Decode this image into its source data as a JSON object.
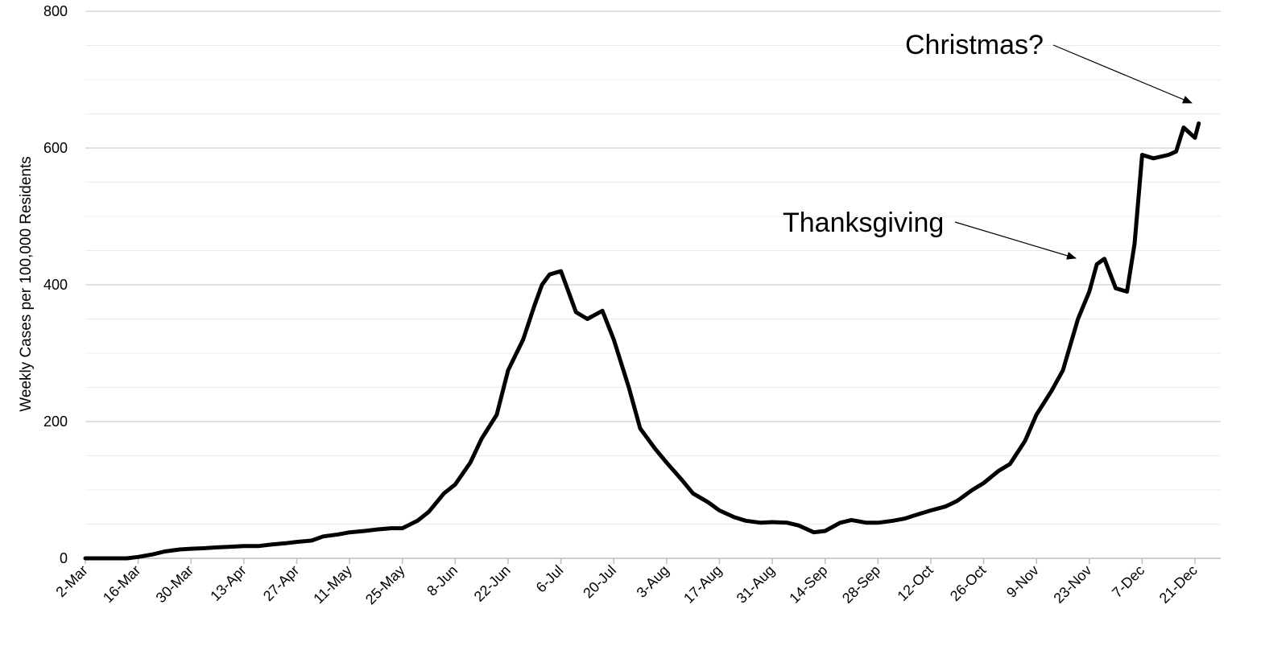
{
  "chart_data": {
    "type": "line",
    "title": "",
    "xlabel": "",
    "ylabel": "Weekly Cases per 100,000 Residents",
    "ylim": [
      0,
      800
    ],
    "yticks": [
      0,
      200,
      400,
      600,
      800
    ],
    "minor_gridlines_every": 50,
    "grid": true,
    "legend": "none",
    "x_tick_labels": [
      "2-Mar",
      "16-Mar",
      "30-Mar",
      "13-Apr",
      "27-Apr",
      "11-May",
      "25-May",
      "8-Jun",
      "22-Jun",
      "6-Jul",
      "20-Jul",
      "3-Aug",
      "17-Aug",
      "31-Aug",
      "14-Sep",
      "28-Sep",
      "12-Oct",
      "26-Oct",
      "9-Nov",
      "23-Nov",
      "7-Dec",
      "21-Dec"
    ],
    "line_color": "#000000",
    "series": [
      {
        "x": [
          "2-Mar",
          "6-Mar",
          "9-Mar",
          "13-Mar",
          "16-Mar",
          "20-Mar",
          "23-Mar",
          "27-Mar",
          "30-Mar",
          "3-Apr",
          "6-Apr",
          "10-Apr",
          "13-Apr",
          "17-Apr",
          "20-Apr",
          "24-Apr",
          "27-Apr",
          "1-May",
          "4-May",
          "8-May",
          "11-May",
          "15-May",
          "18-May",
          "22-May",
          "25-May",
          "29-May",
          "1-Jun",
          "5-Jun",
          "8-Jun",
          "12-Jun",
          "15-Jun",
          "19-Jun",
          "22-Jun",
          "26-Jun",
          "29-Jun",
          "1-Jul",
          "3-Jul",
          "6-Jul",
          "10-Jul",
          "13-Jul",
          "17-Jul",
          "20-Jul",
          "24-Jul",
          "27-Jul",
          "31-Jul",
          "3-Aug",
          "7-Aug",
          "10-Aug",
          "14-Aug",
          "17-Aug",
          "21-Aug",
          "24-Aug",
          "28-Aug",
          "31-Aug",
          "4-Sep",
          "7-Sep",
          "11-Sep",
          "14-Sep",
          "18-Sep",
          "21-Sep",
          "25-Sep",
          "28-Sep",
          "2-Oct",
          "5-Oct",
          "9-Oct",
          "12-Oct",
          "16-Oct",
          "19-Oct",
          "23-Oct",
          "26-Oct",
          "30-Oct",
          "2-Nov",
          "6-Nov",
          "9-Nov",
          "13-Nov",
          "16-Nov",
          "20-Nov",
          "23-Nov",
          "25-Nov",
          "27-Nov",
          "30-Nov",
          "3-Dec",
          "5-Dec",
          "7-Dec",
          "10-Dec",
          "14-Dec",
          "16-Dec",
          "18-Dec",
          "21-Dec",
          "22-Dec"
        ],
        "y": [
          0,
          0,
          0,
          0,
          2,
          6,
          10,
          13,
          14,
          15,
          16,
          17,
          18,
          18,
          20,
          22,
          24,
          26,
          32,
          35,
          38,
          40,
          42,
          44,
          44,
          55,
          68,
          95,
          108,
          140,
          175,
          210,
          275,
          320,
          370,
          400,
          415,
          420,
          360,
          350,
          362,
          320,
          250,
          190,
          160,
          140,
          115,
          95,
          82,
          70,
          60,
          55,
          52,
          53,
          52,
          48,
          38,
          40,
          52,
          56,
          52,
          52,
          55,
          58,
          65,
          70,
          76,
          84,
          100,
          110,
          128,
          138,
          172,
          210,
          245,
          275,
          350,
          390,
          430,
          438,
          395,
          390,
          460,
          590,
          585,
          590,
          595,
          630,
          615,
          636
        ]
      }
    ],
    "annotations": [
      {
        "text": "Thanksgiving",
        "points_to": "26-Nov"
      },
      {
        "text": "Christmas?",
        "points_to": "25-Dec"
      }
    ]
  }
}
